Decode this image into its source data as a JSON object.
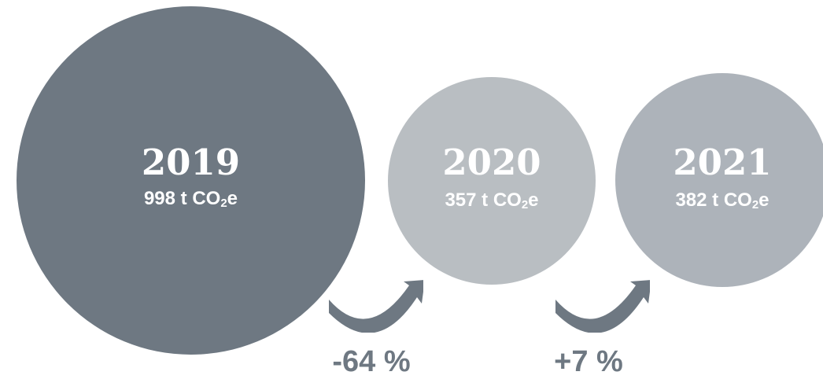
{
  "bubbles": [
    {
      "year": "2019",
      "value": 998,
      "amount_prefix": "998 t CO",
      "subscript": "2",
      "amount_suffix": "e",
      "color": "#6e7882"
    },
    {
      "year": "2020",
      "value": 357,
      "amount_prefix": "357 t CO",
      "subscript": "2",
      "amount_suffix": "e",
      "color": "#b9bec2"
    },
    {
      "year": "2021",
      "value": 382,
      "amount_prefix": "382 t CO",
      "subscript": "2",
      "amount_suffix": "e",
      "color": "#adb3ba"
    }
  ],
  "changes": [
    {
      "label": "-64 %"
    },
    {
      "label": "+7 %"
    }
  ],
  "colors": {
    "arrow": "#6e7882",
    "change_text": "#6e7882"
  }
}
